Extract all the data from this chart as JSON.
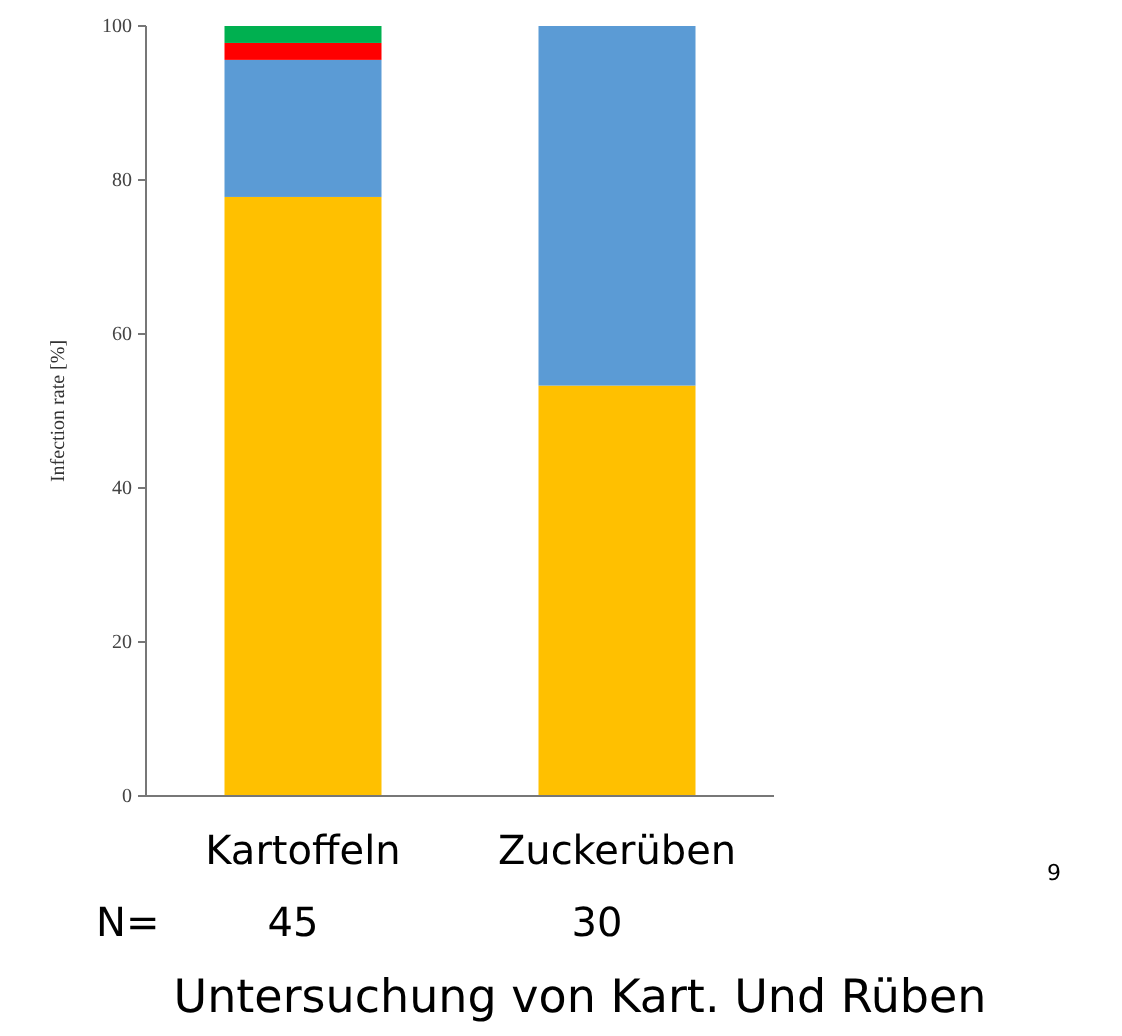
{
  "chart_data": {
    "type": "bar",
    "stacked": true,
    "title": "Untersuchung von Kart. Und Rüben",
    "ylabel": "Infection rate [%]",
    "categories": [
      "Kartoffeln",
      "Zuckerüben"
    ],
    "series": [
      {
        "color": "#ffc000",
        "values": [
          77.8,
          53.3
        ]
      },
      {
        "color": "#5b9bd5",
        "values": [
          17.8,
          46.7
        ]
      },
      {
        "color": "#ff0000",
        "values": [
          2.2,
          0
        ]
      },
      {
        "color": "#00b050",
        "values": [
          2.2,
          0
        ]
      }
    ],
    "ylim": [
      0,
      100
    ],
    "yticks": [
      0,
      20,
      40,
      60,
      80,
      100
    ],
    "grid": false,
    "annotations": [
      "N=",
      "45",
      "30",
      "9"
    ]
  }
}
